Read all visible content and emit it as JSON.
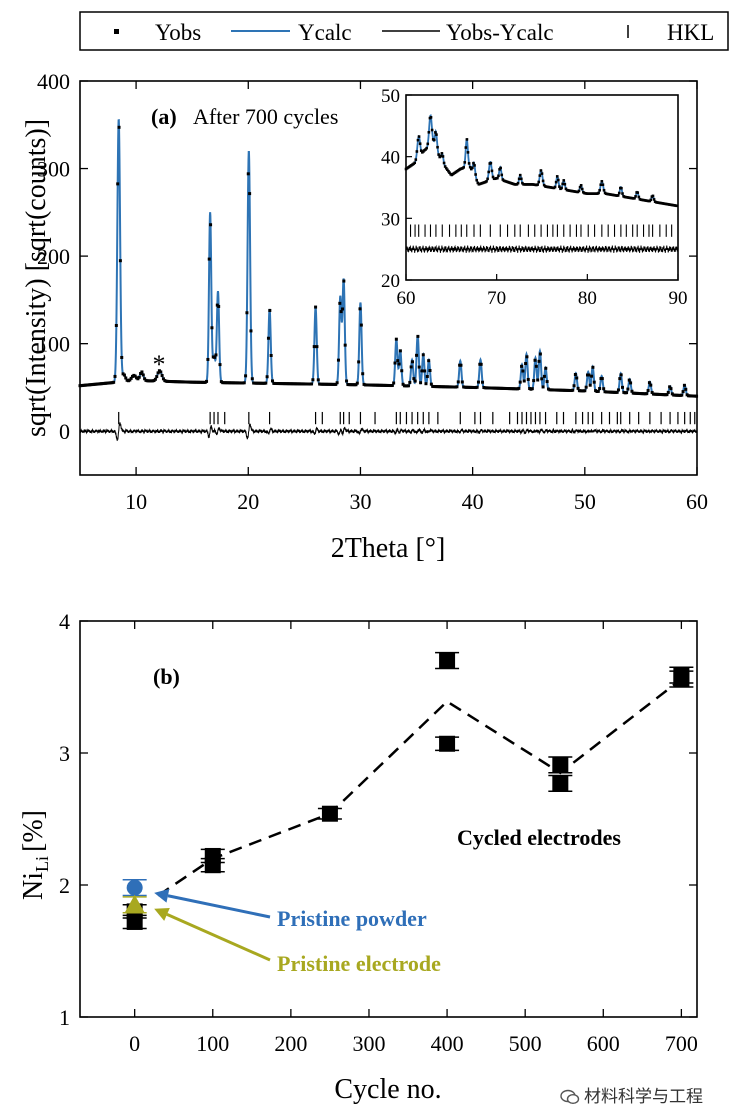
{
  "legend": {
    "entries": [
      {
        "label": "Yobs",
        "key": "dot",
        "color": "#000000"
      },
      {
        "label": "Ycalc",
        "key": "line",
        "color": "#2e74b5"
      },
      {
        "label": "Yobs-Ycalc",
        "key": "line",
        "color": "#000000"
      },
      {
        "label": "HKL",
        "key": "tick",
        "color": "#000000"
      }
    ]
  },
  "chart_data": [
    {
      "type": "line",
      "panel_label": "(a)",
      "title": "After 700 cycles",
      "xlabel": "2Theta [°]",
      "ylabel": "sqrt(Intensity) [sqrt(counts)]",
      "xlim": [
        5,
        60
      ],
      "ylim": [
        -50,
        400
      ],
      "xticks": [
        10,
        20,
        30,
        40,
        50,
        60
      ],
      "yticks": [
        0,
        100,
        200,
        300,
        400
      ],
      "annotation": {
        "text": "*",
        "x": 12.0,
        "y": 78
      },
      "series_colors": {
        "obs": "#000000",
        "calc": "#2e74b5",
        "diff": "#000000",
        "hkl": "#000000"
      },
      "background_points": [
        [
          5,
          52
        ],
        [
          10,
          58
        ],
        [
          15,
          56
        ],
        [
          20,
          55
        ],
        [
          25,
          54
        ],
        [
          30,
          53
        ],
        [
          40,
          50
        ],
        [
          50,
          46
        ],
        [
          60,
          40
        ]
      ],
      "peaks": [
        {
          "x": 8.45,
          "h": 300,
          "w": 0.12
        },
        {
          "x": 8.9,
          "h": 8,
          "w": 0.15
        },
        {
          "x": 9.8,
          "h": 6,
          "w": 0.2
        },
        {
          "x": 10.5,
          "h": 10,
          "w": 0.15
        },
        {
          "x": 12.1,
          "h": 12,
          "w": 0.2
        },
        {
          "x": 16.6,
          "h": 194,
          "w": 0.1
        },
        {
          "x": 16.95,
          "h": 30,
          "w": 0.12
        },
        {
          "x": 17.3,
          "h": 104,
          "w": 0.1
        },
        {
          "x": 20.05,
          "h": 265,
          "w": 0.11
        },
        {
          "x": 21.9,
          "h": 85,
          "w": 0.1
        },
        {
          "x": 26.0,
          "h": 88,
          "w": 0.1
        },
        {
          "x": 28.2,
          "h": 100,
          "w": 0.1
        },
        {
          "x": 28.5,
          "h": 120,
          "w": 0.1
        },
        {
          "x": 30.0,
          "h": 94,
          "w": 0.1
        },
        {
          "x": 33.2,
          "h": 53,
          "w": 0.1
        },
        {
          "x": 33.55,
          "h": 40,
          "w": 0.1
        },
        {
          "x": 34.6,
          "h": 30,
          "w": 0.1
        },
        {
          "x": 35.1,
          "h": 58,
          "w": 0.1
        },
        {
          "x": 35.6,
          "h": 36,
          "w": 0.1
        },
        {
          "x": 36.1,
          "h": 30,
          "w": 0.1
        },
        {
          "x": 38.9,
          "h": 30,
          "w": 0.1
        },
        {
          "x": 40.7,
          "h": 32,
          "w": 0.1
        },
        {
          "x": 44.4,
          "h": 28,
          "w": 0.1
        },
        {
          "x": 44.8,
          "h": 40,
          "w": 0.1
        },
        {
          "x": 45.6,
          "h": 36,
          "w": 0.1
        },
        {
          "x": 46.0,
          "h": 44,
          "w": 0.1
        },
        {
          "x": 46.5,
          "h": 25,
          "w": 0.1
        },
        {
          "x": 49.2,
          "h": 20,
          "w": 0.1
        },
        {
          "x": 50.3,
          "h": 22,
          "w": 0.1
        },
        {
          "x": 50.7,
          "h": 28,
          "w": 0.1
        },
        {
          "x": 51.5,
          "h": 18,
          "w": 0.1
        },
        {
          "x": 53.2,
          "h": 22,
          "w": 0.1
        },
        {
          "x": 54.0,
          "h": 16,
          "w": 0.1
        },
        {
          "x": 55.8,
          "h": 14,
          "w": 0.1
        },
        {
          "x": 57.6,
          "h": 10,
          "w": 0.1
        },
        {
          "x": 58.9,
          "h": 12,
          "w": 0.1
        }
      ],
      "hkl_positions": [
        8.45,
        16.6,
        16.95,
        17.3,
        17.9,
        20.05,
        21.9,
        26.0,
        26.6,
        28.2,
        28.5,
        29.0,
        30.0,
        31.3,
        33.2,
        33.55,
        34.1,
        34.6,
        35.1,
        35.6,
        36.1,
        36.9,
        38.9,
        40.2,
        40.7,
        41.8,
        43.3,
        44.0,
        44.4,
        44.8,
        45.2,
        45.6,
        46.0,
        46.5,
        47.5,
        48.1,
        49.2,
        49.8,
        50.3,
        50.7,
        51.5,
        52.2,
        52.9,
        53.2,
        54.0,
        54.8,
        55.8,
        56.8,
        57.6,
        58.3,
        58.9,
        59.4,
        59.8
      ],
      "inset": {
        "xlim": [
          60,
          90
        ],
        "ylim": [
          20,
          50
        ],
        "xticks": [
          60,
          70,
          80,
          90
        ],
        "yticks": [
          20,
          30,
          40,
          50
        ],
        "profile_points": [
          [
            60,
            38
          ],
          [
            61,
            39
          ],
          [
            62,
            41
          ],
          [
            63,
            42
          ],
          [
            64,
            39
          ],
          [
            65,
            37
          ],
          [
            66,
            38
          ],
          [
            67,
            38.5
          ],
          [
            68,
            35.5
          ],
          [
            69,
            36
          ],
          [
            70,
            36.5
          ],
          [
            72,
            35.5
          ],
          [
            74,
            35.5
          ],
          [
            76,
            35
          ],
          [
            78,
            34.5
          ],
          [
            80,
            34
          ],
          [
            82,
            34
          ],
          [
            84,
            33.5
          ],
          [
            86,
            33
          ],
          [
            88,
            32.5
          ],
          [
            90,
            32
          ]
        ],
        "peaks": [
          {
            "x": 61.4,
            "h": 3.5,
            "w": 0.15
          },
          {
            "x": 62.7,
            "h": 5.0,
            "w": 0.15
          },
          {
            "x": 63.3,
            "h": 3.0,
            "w": 0.12
          },
          {
            "x": 64.0,
            "h": 1.5,
            "w": 0.12
          },
          {
            "x": 66.7,
            "h": 4.5,
            "w": 0.12
          },
          {
            "x": 67.5,
            "h": 2.0,
            "w": 0.12
          },
          {
            "x": 69.3,
            "h": 3.0,
            "w": 0.15
          },
          {
            "x": 70.4,
            "h": 2.0,
            "w": 0.12
          },
          {
            "x": 72.6,
            "h": 1.5,
            "w": 0.12
          },
          {
            "x": 74.9,
            "h": 2.5,
            "w": 0.15
          },
          {
            "x": 76.7,
            "h": 2.0,
            "w": 0.12
          },
          {
            "x": 77.4,
            "h": 1.5,
            "w": 0.12
          },
          {
            "x": 79.3,
            "h": 1.2,
            "w": 0.12
          },
          {
            "x": 81.6,
            "h": 2.0,
            "w": 0.15
          },
          {
            "x": 83.7,
            "h": 1.5,
            "w": 0.12
          },
          {
            "x": 85.5,
            "h": 1.2,
            "w": 0.12
          },
          {
            "x": 87.2,
            "h": 1.0,
            "w": 0.12
          }
        ],
        "hkl_positions": [
          60.5,
          61.0,
          61.4,
          62.1,
          62.7,
          63.3,
          64.0,
          64.8,
          65.5,
          66.1,
          66.7,
          67.5,
          68.2,
          69.3,
          70.4,
          71.2,
          72.0,
          72.6,
          73.5,
          74.2,
          74.9,
          75.6,
          76.2,
          76.7,
          77.4,
          78.1,
          78.8,
          79.3,
          80.1,
          80.8,
          81.6,
          82.3,
          83.0,
          83.7,
          84.3,
          85.0,
          85.5,
          86.2,
          86.8,
          87.2,
          88.0,
          88.7,
          89.3
        ],
        "hkl_level": 28,
        "diff_level": 25
      }
    },
    {
      "type": "scatter",
      "panel_label": "(b)",
      "xlabel": "Cycle no.",
      "ylabel_main": "Ni",
      "ylabel_sub": "Li",
      "ylabel_unit": "[%]",
      "xlim": [
        -70,
        720
      ],
      "ylim": [
        1,
        4
      ],
      "xticks": [
        0,
        100,
        200,
        300,
        400,
        500,
        600,
        700
      ],
      "yticks": [
        1,
        2,
        3,
        4
      ],
      "series": [
        {
          "name": "Cycled electrodes",
          "marker": "square",
          "color": "#000000",
          "points": [
            {
              "x": 0,
              "y": 1.72,
              "err": 0.05
            },
            {
              "x": 0,
              "y": 1.8,
              "err": 0.05
            },
            {
              "x": 100,
              "y": 2.15,
              "err": 0.05
            },
            {
              "x": 100,
              "y": 2.22,
              "err": 0.05
            },
            {
              "x": 250,
              "y": 2.54,
              "err": 0.04
            },
            {
              "x": 400,
              "y": 3.07,
              "err": 0.05
            },
            {
              "x": 400,
              "y": 3.7,
              "err": 0.06
            },
            {
              "x": 545,
              "y": 2.77,
              "err": 0.06
            },
            {
              "x": 545,
              "y": 2.91,
              "err": 0.06
            },
            {
              "x": 700,
              "y": 3.56,
              "err": 0.06
            },
            {
              "x": 700,
              "y": 3.59,
              "err": 0.06
            }
          ]
        },
        {
          "name": "Pristine powder",
          "marker": "circle",
          "color": "#2f6fb8",
          "points": [
            {
              "x": 0,
              "y": 1.98,
              "err": 0.06
            }
          ]
        },
        {
          "name": "Pristine electrode",
          "marker": "triangle",
          "color": "#a8a820",
          "points": [
            {
              "x": 0,
              "y": 1.85,
              "err": 0.06
            }
          ]
        }
      ],
      "trend_line": [
        {
          "x": 30,
          "y": 1.92
        },
        {
          "x": 100,
          "y": 2.2
        },
        {
          "x": 250,
          "y": 2.54
        },
        {
          "x": 400,
          "y": 3.39
        },
        {
          "x": 545,
          "y": 2.85
        },
        {
          "x": 700,
          "y": 3.56
        }
      ],
      "annotations": [
        {
          "text": "Cycled electrodes",
          "color": "#000000"
        },
        {
          "text": "Pristine powder",
          "color": "#2f6fb8",
          "arrow_to": {
            "x": 25,
            "y": 1.94
          }
        },
        {
          "text": "Pristine electrode",
          "color": "#a8a820",
          "arrow_to": {
            "x": 25,
            "y": 1.82
          }
        }
      ]
    }
  ],
  "watermark": {
    "text": "材料科学与工程",
    "icon": "wechat-icon"
  }
}
